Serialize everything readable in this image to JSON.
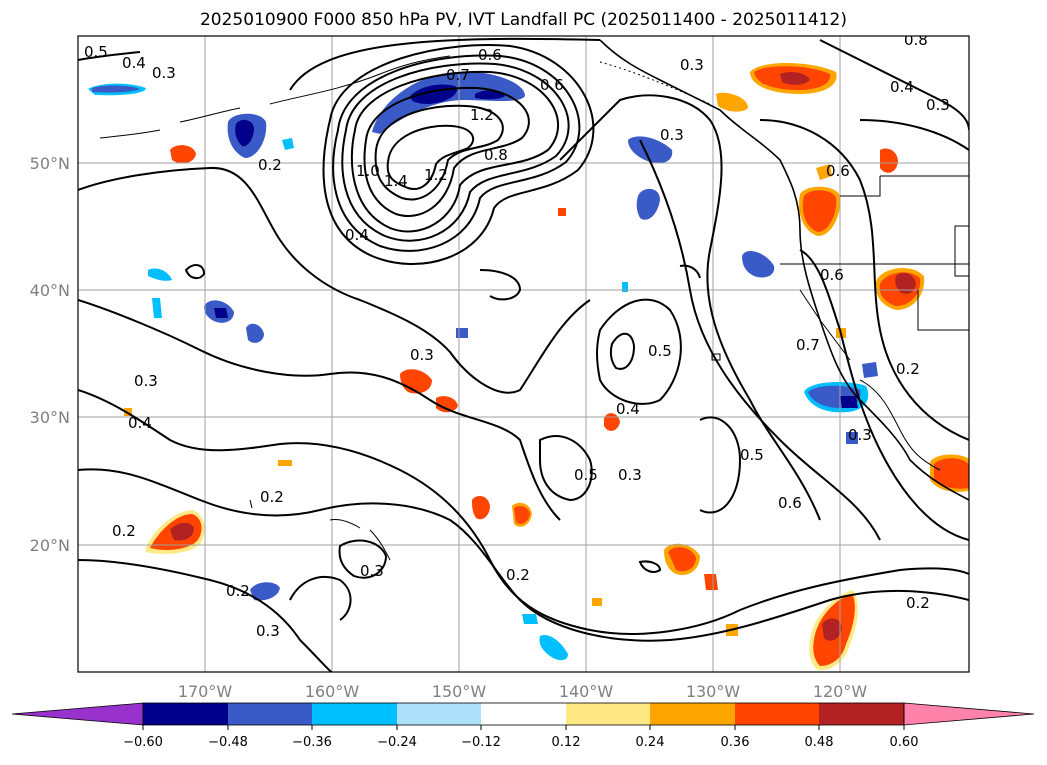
{
  "title": "2025010900 F000 850 hPa PV, IVT Landfall PC (2025011400 - 2025011412)",
  "map": {
    "lon_ticks": [
      "170°W",
      "160°W",
      "150°W",
      "140°W",
      "130°W",
      "120°W"
    ],
    "lat_ticks": [
      "50°N",
      "40°N",
      "30°N",
      "20°N"
    ],
    "contour_labels": [
      "0.5",
      "0.4",
      "0.3",
      "0.2",
      "0.6",
      "0.7",
      "1.2",
      "0.8",
      "1.0",
      "1.4",
      "1.2",
      "0.6",
      "0.3",
      "0.4",
      "0.8",
      "0.4",
      "0.3",
      "0.6",
      "0.3",
      "0.6",
      "0.7",
      "0.5",
      "0.2",
      "0.3",
      "0.4",
      "0.3",
      "0.4",
      "0.3",
      "0.5",
      "0.3",
      "0.2",
      "0.2",
      "0.3",
      "0.5",
      "0.6",
      "0.2",
      "0.2",
      "0.3",
      "0.2"
    ]
  },
  "colorbar": {
    "levels": [
      -0.6,
      -0.48,
      -0.36,
      -0.24,
      -0.12,
      0.12,
      0.24,
      0.36,
      0.48,
      0.6
    ],
    "tick_labels": [
      "−0.60",
      "−0.48",
      "−0.36",
      "−0.24",
      "−0.12",
      "0.12",
      "0.24",
      "0.36",
      "0.48",
      "0.60"
    ],
    "colors": [
      "#9932CC",
      "#00008B",
      "#3A5BC7",
      "#00BFFF",
      "#ADE1FA",
      "#FFFFFF",
      "#FFE985",
      "#FFA500",
      "#FF4500",
      "#B22222",
      "#FF82AB"
    ]
  },
  "colors": {
    "contour": "#000000",
    "coastline": "#000000",
    "grid": "#a0a0a0",
    "negative_strong": "#3A5BC7",
    "negative_core": "#00008B",
    "negative_weak": "#00BFFF",
    "positive_weak": "#FFA500",
    "positive_mid": "#FF4500",
    "positive_core": "#B22222"
  }
}
